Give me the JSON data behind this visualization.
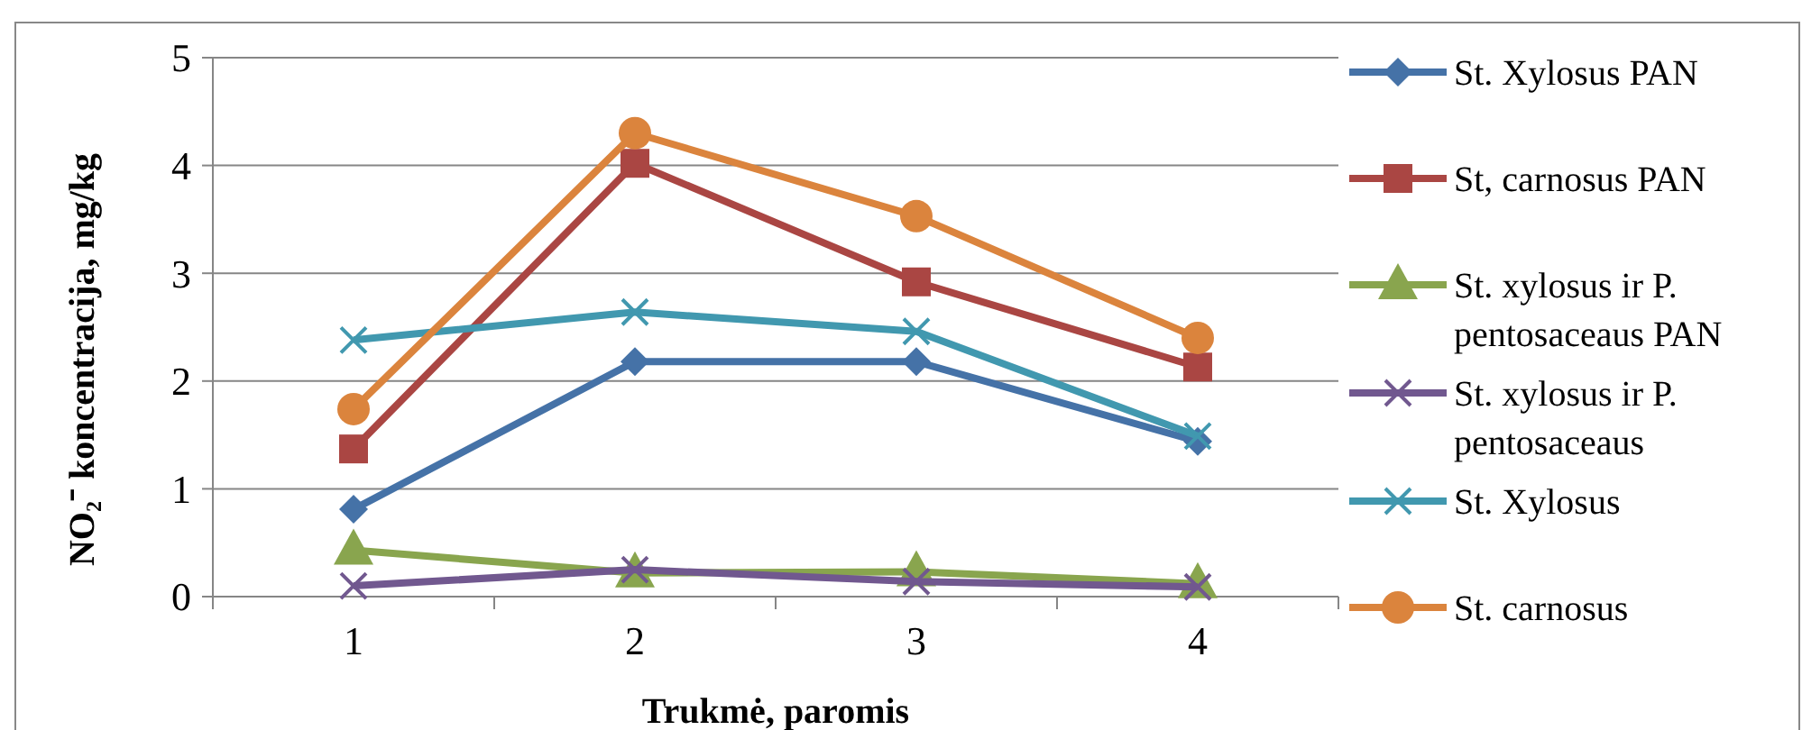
{
  "chart_data": {
    "type": "line",
    "xlabel": "Trukmė, paromis",
    "ylabel": "NO₂⁻ koncentracija, mg/kg",
    "categories": [
      "1",
      "2",
      "3",
      "4"
    ],
    "ylim": [
      0,
      5
    ],
    "yticks": [
      0,
      1,
      2,
      3,
      4,
      5
    ],
    "grid": "y",
    "legend": "right",
    "line_style": "solid",
    "series": [
      {
        "name": "St. Xylosus PAN",
        "color": "#4572a7",
        "marker": "diamond",
        "values": [
          0.81,
          2.18,
          2.18,
          1.44
        ]
      },
      {
        "name": "St, carnosus PAN",
        "color": "#aa4643",
        "marker": "square",
        "values": [
          1.37,
          4.02,
          2.92,
          2.13
        ]
      },
      {
        "name": "St. xylosus ir P. pentosaceaus PAN",
        "color": "#89a54e",
        "marker": "triangle",
        "values": [
          0.43,
          0.22,
          0.23,
          0.12
        ]
      },
      {
        "name": "St. xylosus ir P. pentosaceaus",
        "color": "#71588f",
        "marker": "cross",
        "values": [
          0.1,
          0.25,
          0.14,
          0.09
        ]
      },
      {
        "name": "St. Xylosus",
        "color": "#4198af",
        "marker": "cross",
        "values": [
          2.38,
          2.64,
          2.46,
          1.49
        ]
      },
      {
        "name": "St. carnosus",
        "color": "#db843d",
        "marker": "circle",
        "values": [
          1.74,
          4.3,
          3.53,
          2.4
        ]
      }
    ]
  }
}
